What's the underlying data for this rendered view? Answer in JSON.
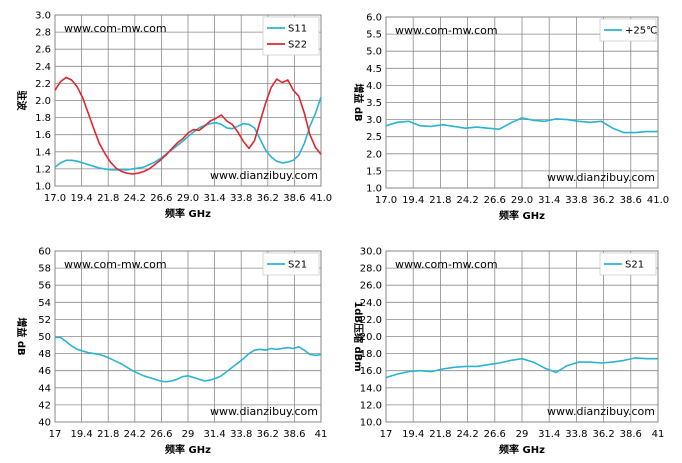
{
  "watermark_top": "www.com-mw.com",
  "watermark_bottom": "www.dianzibuy.com",
  "chart_data": [
    {
      "type": "line",
      "title": "",
      "xlabel": "频率 GHz",
      "ylabel": "驻波",
      "xlim": [
        17.0,
        41.0
      ],
      "ylim": [
        1.0,
        3.0
      ],
      "x_ticks": [
        "17.0",
        "19.4",
        "21.8",
        "24.2",
        "26.6",
        "29.0",
        "31.4",
        "33.8",
        "36.2",
        "38.6",
        "41.0"
      ],
      "y_ticks": [
        "1.0",
        "1.2",
        "1.4",
        "1.6",
        "1.8",
        "2.0",
        "2.2",
        "2.4",
        "2.6",
        "2.8",
        "3.0"
      ],
      "grid": true,
      "legend": "top-right",
      "series": [
        {
          "name": "S11",
          "color": "#2bb3d6",
          "x": [
            17.0,
            17.5,
            18.0,
            18.5,
            19.0,
            19.5,
            20.0,
            20.5,
            21.0,
            21.5,
            22.0,
            22.5,
            23.0,
            23.5,
            24.0,
            24.5,
            25.0,
            25.5,
            26.0,
            26.5,
            27.0,
            27.5,
            28.0,
            28.5,
            29.0,
            29.5,
            30.0,
            30.5,
            31.0,
            31.5,
            32.0,
            32.5,
            33.0,
            33.5,
            34.0,
            34.5,
            35.0,
            35.5,
            36.0,
            36.5,
            37.0,
            37.5,
            38.0,
            38.5,
            39.0,
            39.5,
            40.0,
            40.5,
            41.0
          ],
          "y": [
            1.22,
            1.27,
            1.3,
            1.3,
            1.29,
            1.27,
            1.25,
            1.23,
            1.21,
            1.2,
            1.19,
            1.19,
            1.19,
            1.19,
            1.2,
            1.21,
            1.22,
            1.25,
            1.28,
            1.32,
            1.37,
            1.42,
            1.47,
            1.52,
            1.58,
            1.63,
            1.68,
            1.71,
            1.73,
            1.74,
            1.72,
            1.68,
            1.67,
            1.7,
            1.73,
            1.72,
            1.68,
            1.55,
            1.42,
            1.34,
            1.29,
            1.27,
            1.28,
            1.3,
            1.36,
            1.5,
            1.7,
            1.85,
            2.04
          ]
        },
        {
          "name": "S22",
          "color": "#e0262e",
          "x": [
            17.0,
            17.5,
            18.0,
            18.5,
            19.0,
            19.5,
            20.0,
            20.5,
            21.0,
            21.5,
            22.0,
            22.5,
            23.0,
            23.5,
            24.0,
            24.5,
            25.0,
            25.5,
            26.0,
            26.5,
            27.0,
            27.5,
            28.0,
            28.5,
            29.0,
            29.5,
            30.0,
            30.5,
            31.0,
            31.5,
            32.0,
            32.5,
            33.0,
            33.5,
            34.0,
            34.5,
            35.0,
            35.5,
            36.0,
            36.5,
            37.0,
            37.5,
            38.0,
            38.5,
            39.0,
            39.5,
            40.0,
            40.5,
            41.0
          ],
          "y": [
            2.12,
            2.22,
            2.27,
            2.24,
            2.16,
            2.03,
            1.85,
            1.67,
            1.5,
            1.38,
            1.28,
            1.21,
            1.17,
            1.15,
            1.14,
            1.15,
            1.17,
            1.2,
            1.25,
            1.3,
            1.36,
            1.43,
            1.5,
            1.55,
            1.62,
            1.66,
            1.65,
            1.7,
            1.76,
            1.79,
            1.83,
            1.76,
            1.72,
            1.63,
            1.52,
            1.44,
            1.53,
            1.75,
            1.97,
            2.15,
            2.25,
            2.21,
            2.24,
            2.12,
            2.05,
            1.85,
            1.6,
            1.45,
            1.37
          ]
        }
      ]
    },
    {
      "type": "line",
      "title": "",
      "xlabel": "频率 GHz",
      "ylabel": "增益 dB",
      "xlim": [
        17.0,
        41.0
      ],
      "ylim": [
        1.0,
        6.0
      ],
      "x_ticks": [
        "17.0",
        "19.4",
        "21.8",
        "24.2",
        "26.6",
        "29.0",
        "31.4",
        "33.8",
        "36.2",
        "38.6",
        "41.0"
      ],
      "y_ticks": [
        "1.0",
        "1.5",
        "2.0",
        "2.5",
        "3.0",
        "3.5",
        "4.0",
        "4.5",
        "5.0",
        "5.5",
        "6.0"
      ],
      "grid": true,
      "legend": "top-right",
      "series": [
        {
          "name": "+25℃",
          "color": "#2bb3d6",
          "x": [
            17.0,
            18.0,
            19.0,
            20.0,
            21.0,
            22.0,
            23.0,
            24.0,
            25.0,
            26.0,
            27.0,
            28.0,
            29.0,
            30.0,
            31.0,
            32.0,
            33.0,
            34.0,
            35.0,
            36.0,
            37.0,
            38.0,
            39.0,
            40.0,
            41.0
          ],
          "y": [
            2.82,
            2.92,
            2.95,
            2.82,
            2.8,
            2.85,
            2.8,
            2.75,
            2.78,
            2.75,
            2.72,
            2.9,
            3.05,
            2.98,
            2.95,
            3.02,
            3.0,
            2.95,
            2.92,
            2.95,
            2.75,
            2.62,
            2.62,
            2.65,
            2.65
          ]
        }
      ]
    },
    {
      "type": "line",
      "title": "",
      "xlabel": "频率 GHz",
      "ylabel": "增益 dB",
      "xlim": [
        17,
        41
      ],
      "ylim": [
        40,
        60
      ],
      "x_ticks": [
        "17",
        "19.4",
        "21.8",
        "24.2",
        "26.6",
        "29",
        "31.4",
        "33.8",
        "36.2",
        "38.6",
        "41"
      ],
      "y_ticks": [
        "40",
        "42",
        "44",
        "46",
        "48",
        "50",
        "52",
        "54",
        "56",
        "58",
        "60"
      ],
      "grid": true,
      "legend": "top-right",
      "series": [
        {
          "name": "S21",
          "color": "#2bb3d6",
          "x": [
            17.0,
            17.5,
            18.0,
            18.5,
            19.0,
            19.5,
            20.0,
            20.5,
            21.0,
            21.5,
            22.0,
            22.5,
            23.0,
            23.5,
            24.0,
            24.5,
            25.0,
            25.5,
            26.0,
            26.5,
            27.0,
            27.5,
            28.0,
            28.5,
            29.0,
            29.5,
            30.0,
            30.5,
            31.0,
            31.5,
            32.0,
            32.5,
            33.0,
            33.5,
            34.0,
            34.5,
            35.0,
            35.5,
            36.0,
            36.5,
            37.0,
            37.5,
            38.0,
            38.5,
            39.0,
            39.5,
            40.0,
            40.5,
            41.0
          ],
          "y": [
            49.9,
            49.9,
            49.4,
            48.9,
            48.5,
            48.3,
            48.1,
            48.0,
            47.9,
            47.7,
            47.4,
            47.1,
            46.8,
            46.4,
            46.0,
            45.7,
            45.4,
            45.2,
            45.0,
            44.8,
            44.7,
            44.8,
            45.0,
            45.3,
            45.4,
            45.2,
            45.0,
            44.8,
            44.9,
            45.1,
            45.4,
            45.9,
            46.4,
            46.9,
            47.4,
            48.0,
            48.4,
            48.5,
            48.4,
            48.6,
            48.5,
            48.6,
            48.7,
            48.6,
            48.8,
            48.4,
            47.9,
            47.8,
            47.9
          ]
        }
      ]
    },
    {
      "type": "line",
      "title": "",
      "xlabel": "频率 GHz",
      "ylabel": "1dB压缩 dBm",
      "xlim": [
        17,
        41
      ],
      "ylim": [
        10.0,
        30.0
      ],
      "x_ticks": [
        "17",
        "19.4",
        "21.8",
        "24.2",
        "26.6",
        "29",
        "31.4",
        "33.8",
        "36.2",
        "38.6",
        "41"
      ],
      "y_ticks": [
        "10.0",
        "12.0",
        "14.0",
        "16.0",
        "18.0",
        "20.0",
        "22.0",
        "24.0",
        "26.0",
        "28.0",
        "30.0"
      ],
      "grid": true,
      "legend": "top-right",
      "series": [
        {
          "name": "S21",
          "color": "#2bb3d6",
          "x": [
            17.0,
            18.0,
            19.0,
            20.0,
            21.0,
            22.0,
            23.0,
            24.0,
            25.0,
            26.0,
            27.0,
            28.0,
            29.0,
            30.0,
            31.0,
            32.0,
            33.0,
            34.0,
            35.0,
            36.0,
            37.0,
            38.0,
            39.0,
            40.0,
            41.0
          ],
          "y": [
            15.2,
            15.6,
            15.9,
            16.0,
            15.9,
            16.2,
            16.4,
            16.5,
            16.5,
            16.7,
            16.9,
            17.2,
            17.4,
            17.0,
            16.3,
            15.8,
            16.6,
            17.0,
            17.0,
            16.9,
            17.0,
            17.2,
            17.5,
            17.4,
            17.4
          ]
        }
      ]
    }
  ]
}
